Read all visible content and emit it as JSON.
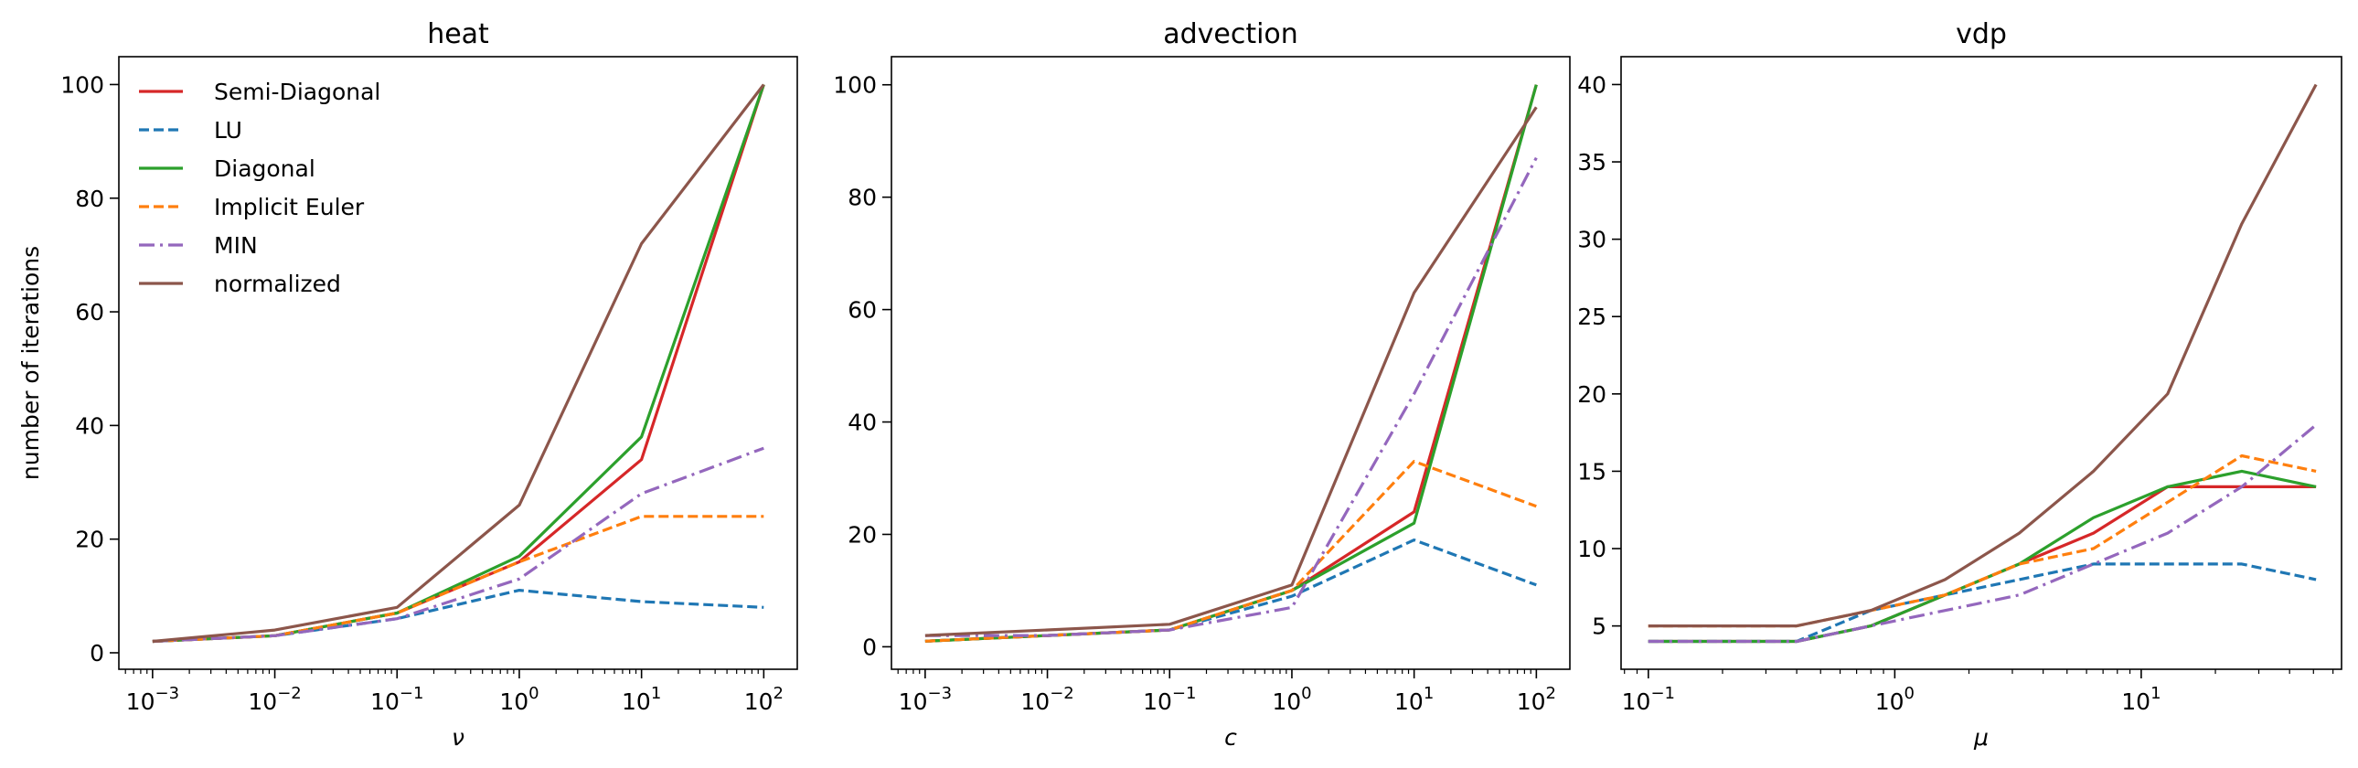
{
  "colors": {
    "Semi-Diagonal": "#d62728",
    "LU": "#1f77b4",
    "Diagonal": "#2ca02c",
    "Implicit Euler": "#ff7f0e",
    "MIN": "#9467bd",
    "normalized": "#8c564b"
  },
  "chart_data": [
    {
      "type": "line",
      "title": "heat",
      "xlabel": "ν",
      "ylabel": "number of iterations",
      "xscale": "log",
      "xlim": [
        0.00053,
        188.0
      ],
      "ylim": [
        -2.9,
        104.9
      ],
      "xticks": [
        {
          "v": 0.001,
          "e": "-3"
        },
        {
          "v": 0.01,
          "e": "-2"
        },
        {
          "v": 0.1,
          "e": "-1"
        },
        {
          "v": 1,
          "e": "0"
        },
        {
          "v": 10,
          "e": "1"
        },
        {
          "v": 100,
          "e": "2"
        }
      ],
      "yticks": [
        0,
        20,
        40,
        60,
        80,
        100
      ],
      "legend": true,
      "legend_position": "upper-left",
      "x": [
        0.001,
        0.01,
        0.1,
        1,
        10,
        100
      ],
      "series": [
        {
          "name": "Semi-Diagonal",
          "style": "solid",
          "values": [
            2,
            3,
            7,
            16,
            34,
            100
          ]
        },
        {
          "name": "LU",
          "style": "dashed",
          "values": [
            2,
            3,
            6,
            11,
            9,
            8
          ]
        },
        {
          "name": "Diagonal",
          "style": "solid",
          "values": [
            2,
            3,
            7,
            17,
            38,
            100
          ]
        },
        {
          "name": "Implicit Euler",
          "style": "dashed",
          "values": [
            2,
            3,
            7,
            16,
            24,
            24
          ]
        },
        {
          "name": "MIN",
          "style": "dashdot",
          "values": [
            2,
            3,
            6,
            13,
            28,
            36
          ]
        },
        {
          "name": "normalized",
          "style": "solid",
          "values": [
            2,
            4,
            8,
            26,
            72,
            100
          ]
        }
      ]
    },
    {
      "type": "line",
      "title": "advection",
      "xlabel": "c",
      "ylabel": "",
      "xscale": "log",
      "xlim": [
        0.00053,
        188.0
      ],
      "ylim": [
        -4.0,
        105.0
      ],
      "xticks": [
        {
          "v": 0.001,
          "e": "-3"
        },
        {
          "v": 0.01,
          "e": "-2"
        },
        {
          "v": 0.1,
          "e": "-1"
        },
        {
          "v": 1,
          "e": "0"
        },
        {
          "v": 10,
          "e": "1"
        },
        {
          "v": 100,
          "e": "2"
        }
      ],
      "yticks": [
        0,
        20,
        40,
        60,
        80,
        100
      ],
      "legend": false,
      "x": [
        0.001,
        0.01,
        0.1,
        1,
        10,
        100
      ],
      "series": [
        {
          "name": "Semi-Diagonal",
          "style": "solid",
          "values": [
            1,
            2,
            3,
            10,
            24,
            100
          ]
        },
        {
          "name": "LU",
          "style": "dashed",
          "values": [
            1,
            2,
            3,
            9,
            19,
            11
          ]
        },
        {
          "name": "Diagonal",
          "style": "solid",
          "values": [
            1,
            2,
            3,
            10,
            22,
            100
          ]
        },
        {
          "name": "Implicit Euler",
          "style": "dashed",
          "values": [
            1,
            2,
            3,
            10,
            33,
            25
          ]
        },
        {
          "name": "MIN",
          "style": "dashdot",
          "values": [
            2,
            2,
            3,
            7,
            45,
            87
          ]
        },
        {
          "name": "normalized",
          "style": "solid",
          "values": [
            2,
            3,
            4,
            11,
            63,
            96
          ]
        }
      ]
    },
    {
      "type": "line",
      "title": "vdp",
      "xlabel": "μ",
      "ylabel": "",
      "xscale": "log",
      "xlim": [
        0.0775,
        65.0
      ],
      "ylim": [
        2.2,
        41.8
      ],
      "xticks": [
        {
          "v": 0.1,
          "e": "-1"
        },
        {
          "v": 1,
          "e": "0"
        },
        {
          "v": 10,
          "e": "1"
        }
      ],
      "yticks": [
        5,
        10,
        15,
        20,
        25,
        30,
        35,
        40
      ],
      "legend": false,
      "x": [
        0.1,
        0.2,
        0.4,
        0.8,
        1.6,
        3.2,
        6.4,
        12.8,
        25.6,
        51.2
      ],
      "series": [
        {
          "name": "Semi-Diagonal",
          "style": "solid",
          "values": [
            4,
            4,
            4,
            5,
            7,
            9,
            11,
            14,
            14,
            14
          ]
        },
        {
          "name": "LU",
          "style": "dashed",
          "values": [
            4,
            4,
            4,
            6,
            7,
            8,
            9,
            9,
            9,
            8
          ]
        },
        {
          "name": "Diagonal",
          "style": "solid",
          "values": [
            4,
            4,
            4,
            5,
            7,
            9,
            12,
            14,
            15,
            14
          ]
        },
        {
          "name": "Implicit Euler",
          "style": "dashed",
          "values": [
            5,
            5,
            5,
            6,
            7,
            9,
            10,
            13,
            16,
            15
          ]
        },
        {
          "name": "MIN",
          "style": "dashdot",
          "values": [
            4,
            4,
            4,
            5,
            6,
            7,
            9,
            11,
            14,
            18
          ]
        },
        {
          "name": "normalized",
          "style": "solid",
          "values": [
            5,
            5,
            5,
            6,
            8,
            11,
            15,
            20,
            31,
            40
          ]
        }
      ]
    }
  ]
}
